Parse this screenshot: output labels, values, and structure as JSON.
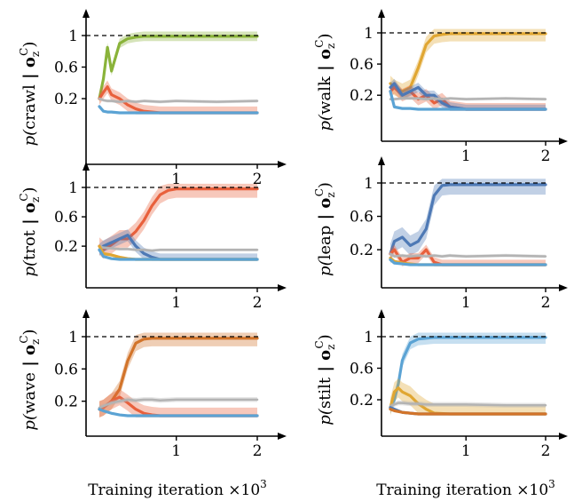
{
  "figure": {
    "xlabel": "Training iteration ×10",
    "xlabel_exp": "3",
    "ylabel_prefix": "p(",
    "ylabel_suffix": " | o",
    "ylabel_sub": "z",
    "ylabel_sup": "C",
    "ylabel_close": ")"
  },
  "colors": {
    "crawl": "#8ab33a",
    "walk": "#e0a632",
    "trot": "#e8603c",
    "leap": "#4e79b5",
    "wave": "#d2742a",
    "stilt": "#5ba3d4",
    "baseline": "#b3b3b3"
  },
  "chart_data": [
    {
      "type": "line",
      "behavior": "crawl",
      "x_unit": "thousand iterations",
      "xlim": [
        0,
        2.4
      ],
      "ylim": [
        0,
        1.15
      ],
      "xticks": [
        1,
        2
      ],
      "yticks": [
        0.2,
        0.6,
        1
      ],
      "yticklabels": [
        "0.2",
        "0.6",
        "1"
      ],
      "reference_line": 1,
      "target_series": "crawl",
      "x": [
        0.05,
        0.1,
        0.15,
        0.2,
        0.3,
        0.4,
        0.5,
        0.6,
        0.8,
        1.0,
        1.5,
        2.0
      ],
      "series": [
        {
          "color_key": "crawl",
          "values": [
            0.2,
            0.45,
            0.85,
            0.55,
            0.9,
            0.96,
            0.98,
            0.99,
            0.99,
            0.99,
            0.99,
            0.99
          ],
          "band": 0.06
        },
        {
          "color_key": "trot",
          "values": [
            0.2,
            0.28,
            0.35,
            0.25,
            0.2,
            0.12,
            0.07,
            0.04,
            0.02,
            0.02,
            0.02,
            0.02
          ],
          "band": 0.08
        },
        {
          "color_key": "baseline",
          "values": [
            0.2,
            0.18,
            0.17,
            0.17,
            0.16,
            0.17,
            0.16,
            0.17,
            0.16,
            0.17,
            0.16,
            0.17
          ],
          "band": 0.02
        },
        {
          "color_key": "stilt",
          "values": [
            0.1,
            0.04,
            0.03,
            0.03,
            0.02,
            0.02,
            0.02,
            0.02,
            0.02,
            0.02,
            0.02,
            0.02
          ],
          "band": 0.01
        }
      ]
    },
    {
      "type": "line",
      "behavior": "walk",
      "x_unit": "thousand iterations",
      "xlim": [
        0,
        2.4
      ],
      "ylim": [
        0,
        1.15
      ],
      "xticks": [
        1,
        2
      ],
      "yticks": [
        0.2,
        0.6,
        1
      ],
      "yticklabels": [
        "0.2",
        "0.6",
        "1"
      ],
      "reference_line": 1,
      "target_series": "walk",
      "x": [
        0.05,
        0.1,
        0.2,
        0.3,
        0.4,
        0.5,
        0.6,
        0.7,
        0.8,
        1.0,
        1.5,
        2.0
      ],
      "series": [
        {
          "color_key": "walk",
          "values": [
            0.35,
            0.3,
            0.25,
            0.3,
            0.55,
            0.85,
            0.96,
            0.98,
            0.99,
            0.99,
            0.99,
            0.99
          ],
          "band": 0.1
        },
        {
          "color_key": "trot",
          "values": [
            0.25,
            0.3,
            0.2,
            0.25,
            0.15,
            0.2,
            0.1,
            0.15,
            0.05,
            0.02,
            0.02,
            0.02
          ],
          "band": 0.08
        },
        {
          "color_key": "leap",
          "values": [
            0.3,
            0.35,
            0.2,
            0.25,
            0.3,
            0.2,
            0.2,
            0.1,
            0.05,
            0.02,
            0.02,
            0.02
          ],
          "band": 0.06
        },
        {
          "color_key": "baseline",
          "values": [
            0.15,
            0.15,
            0.16,
            0.16,
            0.16,
            0.15,
            0.16,
            0.15,
            0.16,
            0.15,
            0.16,
            0.15
          ],
          "band": 0.02
        },
        {
          "color_key": "stilt",
          "values": [
            0.25,
            0.05,
            0.03,
            0.03,
            0.02,
            0.02,
            0.02,
            0.02,
            0.02,
            0.02,
            0.02,
            0.02
          ],
          "band": 0.01
        }
      ]
    },
    {
      "type": "line",
      "behavior": "trot",
      "x_unit": "thousand iterations",
      "xlim": [
        0,
        2.4
      ],
      "ylim": [
        0,
        1.15
      ],
      "xticks": [
        1,
        2
      ],
      "yticks": [
        0.2,
        0.6,
        1
      ],
      "yticklabels": [
        "0.2",
        "0.6",
        "1"
      ],
      "reference_line": 1,
      "target_series": "trot",
      "x": [
        0.05,
        0.1,
        0.2,
        0.3,
        0.4,
        0.5,
        0.6,
        0.7,
        0.8,
        0.9,
        1.0,
        1.5,
        2.0
      ],
      "series": [
        {
          "color_key": "trot",
          "values": [
            0.2,
            0.15,
            0.22,
            0.3,
            0.3,
            0.4,
            0.55,
            0.75,
            0.9,
            0.96,
            0.98,
            0.98,
            0.98
          ],
          "band": 0.12
        },
        {
          "color_key": "leap",
          "values": [
            0.15,
            0.2,
            0.25,
            0.3,
            0.35,
            0.2,
            0.1,
            0.05,
            0.02,
            0.02,
            0.02,
            0.02,
            0.02
          ],
          "band": 0.08
        },
        {
          "color_key": "baseline",
          "values": [
            0.2,
            0.18,
            0.17,
            0.16,
            0.16,
            0.15,
            0.15,
            0.14,
            0.15,
            0.15,
            0.15,
            0.15,
            0.15
          ],
          "band": 0.02
        },
        {
          "color_key": "walk",
          "values": [
            0.2,
            0.1,
            0.08,
            0.05,
            0.03,
            0.02,
            0.02,
            0.02,
            0.02,
            0.02,
            0.02,
            0.02,
            0.02
          ],
          "band": 0.02
        },
        {
          "color_key": "stilt",
          "values": [
            0.15,
            0.06,
            0.03,
            0.02,
            0.02,
            0.02,
            0.02,
            0.02,
            0.02,
            0.02,
            0.02,
            0.02,
            0.02
          ],
          "band": 0.01
        }
      ]
    },
    {
      "type": "line",
      "behavior": "leap",
      "x_unit": "thousand iterations",
      "xlim": [
        0,
        2.4
      ],
      "ylim": [
        0,
        1.15
      ],
      "xticks": [
        1,
        2
      ],
      "yticks": [
        0.2,
        0.6,
        1
      ],
      "yticklabels": [
        "0.2",
        "0.6",
        "1"
      ],
      "reference_line": 1,
      "target_series": "leap",
      "x": [
        0.05,
        0.1,
        0.2,
        0.3,
        0.4,
        0.5,
        0.6,
        0.7,
        0.8,
        1.0,
        1.5,
        2.0
      ],
      "series": [
        {
          "color_key": "leap",
          "values": [
            0.15,
            0.3,
            0.35,
            0.25,
            0.3,
            0.45,
            0.85,
            0.97,
            0.98,
            0.98,
            0.98,
            0.98
          ],
          "band": 0.12
        },
        {
          "color_key": "trot",
          "values": [
            0.15,
            0.2,
            0.05,
            0.1,
            0.1,
            0.2,
            0.05,
            0.02,
            0.02,
            0.02,
            0.02,
            0.02
          ],
          "band": 0.06
        },
        {
          "color_key": "baseline",
          "values": [
            0.15,
            0.12,
            0.13,
            0.12,
            0.13,
            0.12,
            0.13,
            0.12,
            0.13,
            0.12,
            0.13,
            0.12
          ],
          "band": 0.02
        },
        {
          "color_key": "walk",
          "values": [
            0.1,
            0.06,
            0.04,
            0.03,
            0.02,
            0.02,
            0.02,
            0.02,
            0.02,
            0.02,
            0.02,
            0.02
          ],
          "band": 0.01
        },
        {
          "color_key": "stilt",
          "values": [
            0.08,
            0.04,
            0.03,
            0.02,
            0.02,
            0.02,
            0.02,
            0.02,
            0.02,
            0.02,
            0.02,
            0.02
          ],
          "band": 0.01
        }
      ]
    },
    {
      "type": "line",
      "behavior": "wave",
      "x_unit": "thousand iterations",
      "xlim": [
        0,
        2.4
      ],
      "ylim": [
        0,
        1.15
      ],
      "xticks": [
        1,
        2
      ],
      "yticks": [
        0.2,
        0.6,
        1
      ],
      "yticklabels": [
        "0.2",
        "0.6",
        "1"
      ],
      "reference_line": 1,
      "target_series": "wave",
      "x": [
        0.05,
        0.1,
        0.2,
        0.3,
        0.4,
        0.5,
        0.6,
        0.7,
        0.8,
        1.0,
        1.5,
        2.0
      ],
      "series": [
        {
          "color_key": "wave",
          "values": [
            0.1,
            0.12,
            0.2,
            0.35,
            0.7,
            0.92,
            0.97,
            0.98,
            0.98,
            0.98,
            0.98,
            0.98
          ],
          "band": 0.1
        },
        {
          "color_key": "trot",
          "values": [
            0.1,
            0.12,
            0.2,
            0.25,
            0.18,
            0.1,
            0.05,
            0.03,
            0.02,
            0.02,
            0.02,
            0.02
          ],
          "band": 0.1
        },
        {
          "color_key": "baseline",
          "values": [
            0.12,
            0.14,
            0.18,
            0.2,
            0.22,
            0.21,
            0.22,
            0.22,
            0.21,
            0.22,
            0.22,
            0.22
          ],
          "band": 0.03
        },
        {
          "color_key": "stilt",
          "values": [
            0.1,
            0.08,
            0.05,
            0.03,
            0.02,
            0.02,
            0.02,
            0.02,
            0.02,
            0.02,
            0.02,
            0.02
          ],
          "band": 0.01
        }
      ]
    },
    {
      "type": "line",
      "behavior": "stilt",
      "x_unit": "thousand iterations",
      "xlim": [
        0,
        2.4
      ],
      "ylim": [
        0,
        1.15
      ],
      "xticks": [
        1,
        2
      ],
      "yticks": [
        0.2,
        0.6,
        1
      ],
      "yticklabels": [
        "0.2",
        "0.6",
        "1"
      ],
      "reference_line": 1,
      "target_series": "stilt",
      "x": [
        0.05,
        0.1,
        0.15,
        0.2,
        0.3,
        0.4,
        0.5,
        0.6,
        0.8,
        1.0,
        1.5,
        2.0
      ],
      "series": [
        {
          "color_key": "stilt",
          "values": [
            0.1,
            0.2,
            0.4,
            0.7,
            0.92,
            0.97,
            0.98,
            0.99,
            0.99,
            0.99,
            0.99,
            0.99
          ],
          "band": 0.08
        },
        {
          "color_key": "walk",
          "values": [
            0.1,
            0.3,
            0.35,
            0.3,
            0.25,
            0.15,
            0.08,
            0.03,
            0.02,
            0.02,
            0.02,
            0.02
          ],
          "band": 0.12
        },
        {
          "color_key": "baseline",
          "values": [
            0.12,
            0.14,
            0.16,
            0.16,
            0.15,
            0.15,
            0.14,
            0.14,
            0.14,
            0.14,
            0.13,
            0.13
          ],
          "band": 0.03
        },
        {
          "color_key": "leap",
          "values": [
            0.1,
            0.08,
            0.06,
            0.04,
            0.03,
            0.02,
            0.02,
            0.02,
            0.02,
            0.02,
            0.02,
            0.02
          ],
          "band": 0.01
        },
        {
          "color_key": "wave",
          "values": [
            0.08,
            0.06,
            0.05,
            0.04,
            0.03,
            0.02,
            0.02,
            0.02,
            0.02,
            0.02,
            0.02,
            0.02
          ],
          "band": 0.01
        }
      ]
    }
  ]
}
